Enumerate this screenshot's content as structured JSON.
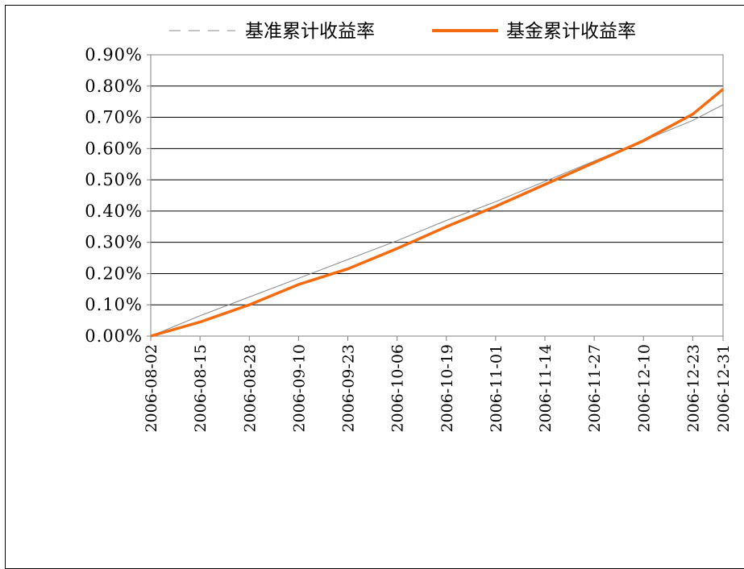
{
  "chart_data": {
    "type": "line",
    "title": "",
    "xlabel": "",
    "ylabel": "",
    "x_ticks": [
      "2006-08-02",
      "2006-08-15",
      "2006-08-28",
      "2006-09-10",
      "2006-09-23",
      "2006-10-06",
      "2006-10-19",
      "2006-11-01",
      "2006-11-14",
      "2006-11-27",
      "2006-12-10",
      "2006-12-23",
      "2006-12-31"
    ],
    "xlim": [
      "2006-08-02",
      "2006-12-31"
    ],
    "ylim": [
      0,
      0.9
    ],
    "y_ticks": [
      "0.00%",
      "0.10%",
      "0.20%",
      "0.30%",
      "0.40%",
      "0.50%",
      "0.60%",
      "0.70%",
      "0.80%",
      "0.90%"
    ],
    "grid": "horizontal",
    "legend": "top",
    "series": [
      {
        "name": "基准累计收益率",
        "style": "thin-gray",
        "color": "#888888",
        "points": [
          [
            "2006-08-02",
            0.0
          ],
          [
            "2006-08-15",
            0.065
          ],
          [
            "2006-08-28",
            0.125
          ],
          [
            "2006-09-10",
            0.185
          ],
          [
            "2006-09-23",
            0.245
          ],
          [
            "2006-10-06",
            0.305
          ],
          [
            "2006-10-19",
            0.37
          ],
          [
            "2006-11-01",
            0.43
          ],
          [
            "2006-11-14",
            0.495
          ],
          [
            "2006-11-27",
            0.56
          ],
          [
            "2006-12-10",
            0.625
          ],
          [
            "2006-12-23",
            0.69
          ],
          [
            "2006-12-31",
            0.74
          ]
        ]
      },
      {
        "name": "基金累计收益率",
        "style": "thick-orange",
        "color": "#f46b10",
        "points": [
          [
            "2006-08-02",
            0.0
          ],
          [
            "2006-08-15",
            0.045
          ],
          [
            "2006-08-28",
            0.1
          ],
          [
            "2006-09-10",
            0.165
          ],
          [
            "2006-09-23",
            0.215
          ],
          [
            "2006-10-06",
            0.28
          ],
          [
            "2006-10-19",
            0.35
          ],
          [
            "2006-11-01",
            0.415
          ],
          [
            "2006-11-14",
            0.485
          ],
          [
            "2006-11-27",
            0.555
          ],
          [
            "2006-12-10",
            0.625
          ],
          [
            "2006-12-23",
            0.71
          ],
          [
            "2006-12-31",
            0.79
          ]
        ]
      }
    ]
  }
}
